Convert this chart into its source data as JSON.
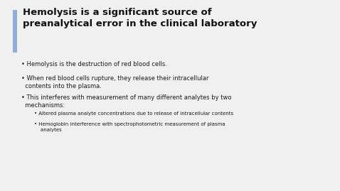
{
  "background_color": "#f0f0f0",
  "accent_bar_color": "#8fafd4",
  "title_line1": "Hemolysis is a significant source of",
  "title_line2": "preanalytical error in the clinical laboratory",
  "title_color": "#111111",
  "title_fontsize": 9.5,
  "title_fontweight": "bold",
  "bullet_points": [
    "Hemolysis is the destruction of red blood cells.",
    "When red blood cells rupture, they release their intracellular\n  contents into the plasma.",
    "This interferes with measurement of many different analytes by two\n  mechanisms:"
  ],
  "sub_bullets": [
    "Altered plasma analyte concentrations due to release of intracellular contents",
    "Hemoglobin interference with spectrophotometric measurement of plasma\n    analytes"
  ],
  "bullet_fontsize": 6.0,
  "sub_bullet_fontsize": 5.0,
  "text_color": "#1a1a1a"
}
